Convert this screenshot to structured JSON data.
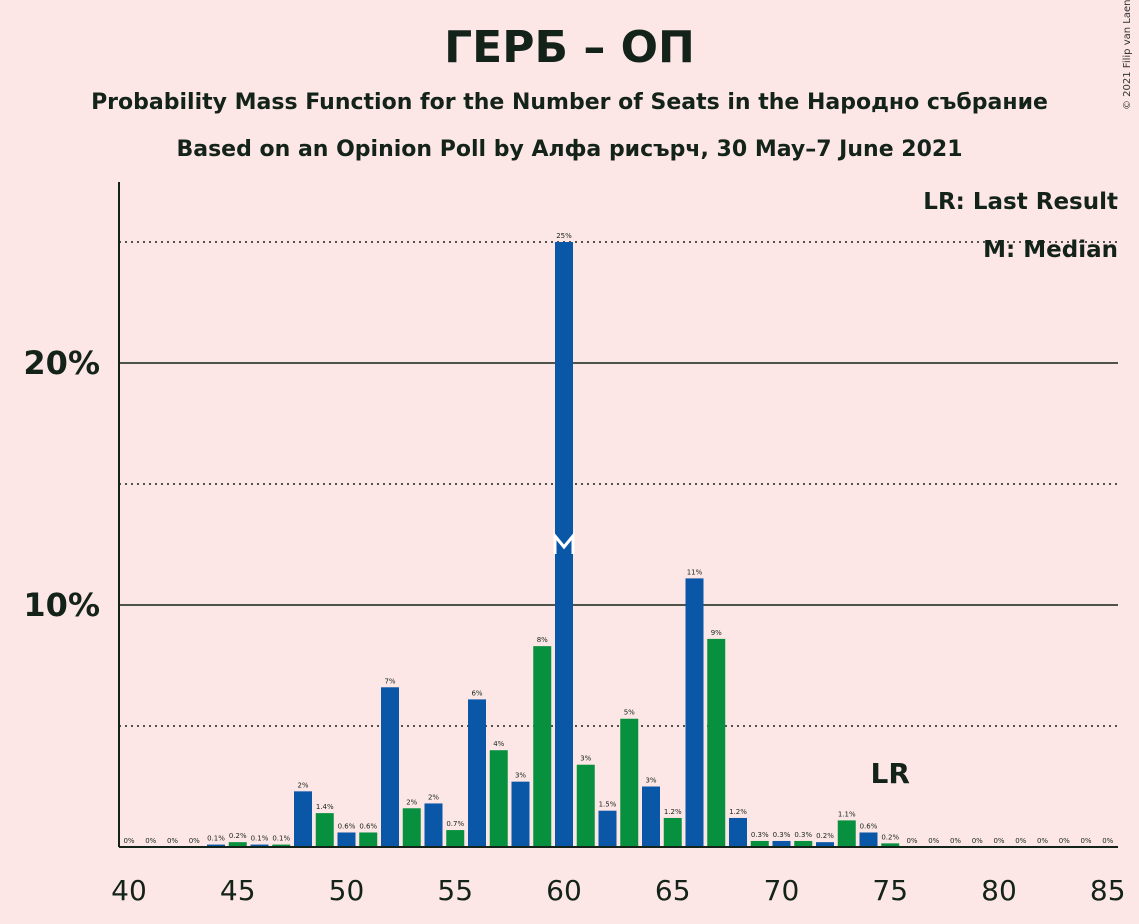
{
  "title": "ГЕРБ – ОП",
  "subtitle1": "Probability Mass Function for the Number of Seats in the Народно събрание",
  "subtitle2": "Based on an Opinion Poll by Алфа рисърч, 30 May–7 June 2021",
  "copyright": "© 2021 Filip van Laenen",
  "legend": {
    "last_result": "LR: Last Result",
    "median": "M: Median"
  },
  "markers": {
    "last_result_label": "LR",
    "last_result_seat": 75,
    "median_label": "M",
    "median_seat": 60
  },
  "colors": {
    "blue": "#0a57a8",
    "green": "#07913f",
    "background": "#fde7e6",
    "text": "#14231a"
  },
  "chart_data": {
    "type": "bar",
    "title": "ГЕРБ – ОП",
    "xlabel": "",
    "ylabel": "",
    "xlim": [
      40,
      85
    ],
    "ylim": [
      0,
      27.5
    ],
    "x_ticks": [
      "40",
      "45",
      "50",
      "55",
      "60",
      "65",
      "70",
      "75",
      "80",
      "85"
    ],
    "y_ticks": [
      {
        "value": 10,
        "label": "10%"
      },
      {
        "value": 20,
        "label": "20%"
      }
    ],
    "dotted_gridlines": [
      5,
      15,
      25
    ],
    "grid": true,
    "legend_position": "top-right",
    "x": [
      40,
      41,
      42,
      43,
      44,
      45,
      46,
      47,
      48,
      49,
      50,
      51,
      52,
      53,
      54,
      55,
      56,
      57,
      58,
      59,
      60,
      61,
      62,
      63,
      64,
      65,
      66,
      67,
      68,
      69,
      70,
      71,
      72,
      73,
      74,
      75,
      76,
      77,
      78,
      79,
      80,
      81,
      82,
      83,
      84,
      85
    ],
    "values": [
      0,
      0,
      0,
      0,
      0.1,
      0.2,
      0.1,
      0.1,
      2.3,
      1.4,
      0.6,
      0.6,
      6.6,
      1.6,
      1.8,
      0.7,
      6.1,
      4.0,
      2.7,
      8.3,
      25.0,
      3.4,
      1.5,
      5.3,
      2.5,
      1.2,
      11.1,
      8.6,
      1.2,
      0.25,
      0.25,
      0.25,
      0.2,
      1.1,
      0.6,
      0.15,
      0,
      0,
      0,
      0,
      0,
      0,
      0,
      0,
      0,
      0
    ],
    "labels": [
      "0%",
      "0%",
      "0%",
      "0%",
      "0.1%",
      "0.2%",
      "0.1%",
      "0.1%",
      "2%",
      "1.4%",
      "0.6%",
      "0.6%",
      "7%",
      "2%",
      "2%",
      "0.7%",
      "6%",
      "4%",
      "3%",
      "8%",
      "25%",
      "3%",
      "1.5%",
      "5%",
      "3%",
      "1.2%",
      "11%",
      "9%",
      "1.2%",
      "0.3%",
      "0.3%",
      "0.3%",
      "0.2%",
      "1.1%",
      "0.6%",
      "0.2%",
      "0%",
      "0%",
      "0%",
      "0%",
      "0%",
      "0%",
      "0%",
      "0%",
      "0%",
      "0%"
    ]
  }
}
